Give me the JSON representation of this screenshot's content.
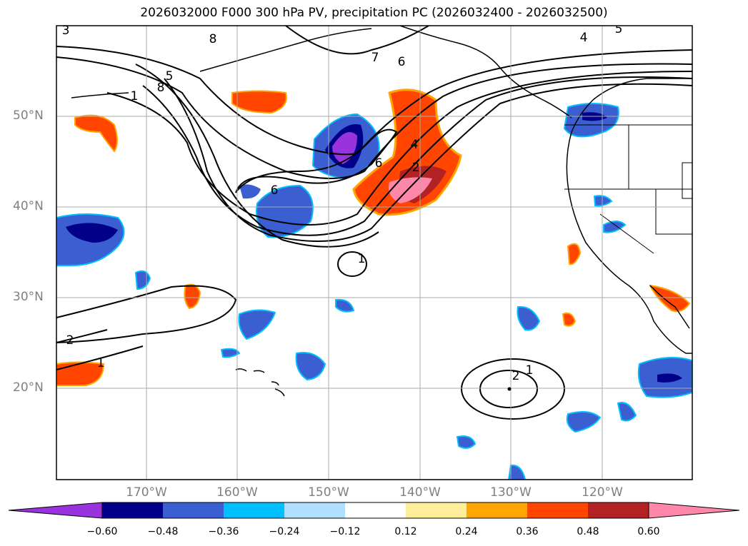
{
  "title": "2026032000 F000 300 hPa PV, precipitation PC (2026032400 - 2026032500)",
  "lat_labels": [
    "50°N",
    "40°N",
    "30°N",
    "20°N"
  ],
  "lon_labels": [
    "170°W",
    "160°W",
    "150°W",
    "140°W",
    "130°W",
    "120°W"
  ],
  "colorbar": {
    "ticks": [
      "−0.60",
      "−0.48",
      "−0.36",
      "−0.24",
      "−0.12",
      "0.12",
      "0.24",
      "0.36",
      "0.48",
      "0.60"
    ],
    "colors": [
      "#9933dd",
      "#00008b",
      "#3b5fd1",
      "#00bfff",
      "#b0e0ff",
      "#ffffff",
      "#ffee99",
      "#ffa500",
      "#ff4500",
      "#b22222",
      "#ff88aa"
    ]
  },
  "contour_labels": [
    "3",
    "8",
    "5",
    "8",
    "1",
    "7",
    "6",
    "4",
    "5",
    "6",
    "6",
    "4",
    "2",
    "1",
    "2",
    "1",
    "2",
    "1"
  ],
  "colors": {
    "negative_strong": "#00008b",
    "negative": "#3b5fd1",
    "positive": "#ff4500",
    "positive_strong": "#b22222"
  }
}
